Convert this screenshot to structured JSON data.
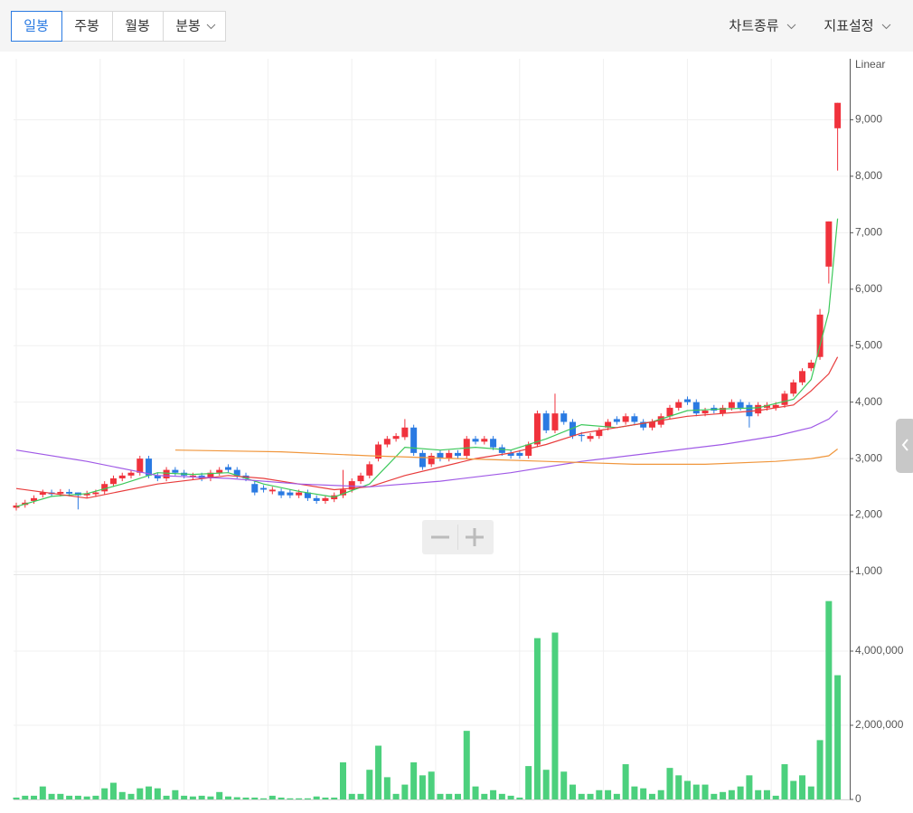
{
  "toolbar": {
    "tabs": [
      "일봉",
      "주봉",
      "월봉",
      "분봉"
    ],
    "menus": [
      "차트종류",
      "지표설정"
    ]
  },
  "chart_data": [
    {
      "type": "candlestick",
      "scale_label": "Linear",
      "up_color": "#f0323c",
      "down_color": "#2a7ae2",
      "open": [
        2130,
        2180,
        2250,
        2360,
        2400,
        2380,
        2410,
        2400,
        2350,
        2370,
        2420,
        2550,
        2650,
        2700,
        2750,
        3000,
        2700,
        2650,
        2800,
        2750,
        2680,
        2700,
        2650,
        2750,
        2850,
        2800,
        2700,
        2550,
        2480,
        2420,
        2420,
        2400,
        2350,
        2400,
        2300,
        2250,
        2280,
        2350,
        2450,
        2600,
        2700,
        3000,
        3250,
        3350,
        3380,
        3550,
        3100,
        2900,
        3100,
        3000,
        3100,
        3050,
        3350,
        3300,
        3350,
        3200,
        3100,
        3100,
        3050,
        3250,
        3800,
        3500,
        3800,
        3650,
        3420,
        3350,
        3400,
        3550,
        3700,
        3650,
        3750,
        3650,
        3550,
        3600,
        3750,
        3900,
        4050,
        4000,
        3800,
        3900,
        3800,
        3900,
        4000,
        3950,
        3800,
        3900,
        3900,
        3950,
        4150,
        4350,
        4600,
        4800,
        6400,
        8850
      ],
      "high": [
        2220,
        2270,
        2350,
        2450,
        2450,
        2460,
        2460,
        2400,
        2430,
        2450,
        2600,
        2700,
        2750,
        2800,
        3050,
        3050,
        2750,
        2850,
        2850,
        2800,
        2750,
        2750,
        2800,
        2850,
        2900,
        2850,
        2750,
        2600,
        2530,
        2500,
        2470,
        2450,
        2450,
        2450,
        2350,
        2350,
        2400,
        2800,
        2650,
        2750,
        2950,
        3300,
        3400,
        3450,
        3700,
        3600,
        3150,
        3100,
        3150,
        3150,
        3150,
        3400,
        3400,
        3400,
        3400,
        3250,
        3150,
        3150,
        3300,
        3850,
        3850,
        4150,
        3850,
        3700,
        3470,
        3450,
        3550,
        3700,
        3750,
        3800,
        3800,
        3700,
        3700,
        3800,
        3950,
        4050,
        4100,
        4050,
        3900,
        3950,
        3950,
        4050,
        4050,
        4000,
        4000,
        4000,
        4000,
        4200,
        4400,
        4600,
        4750,
        5650,
        7200,
        9300
      ],
      "low": [
        2080,
        2130,
        2200,
        2310,
        2320,
        2330,
        2330,
        2100,
        2300,
        2320,
        2370,
        2500,
        2600,
        2650,
        2700,
        2650,
        2600,
        2600,
        2700,
        2650,
        2630,
        2600,
        2600,
        2700,
        2750,
        2650,
        2600,
        2350,
        2400,
        2370,
        2300,
        2300,
        2300,
        2250,
        2200,
        2200,
        2230,
        2300,
        2400,
        2550,
        2650,
        2950,
        3200,
        3300,
        3330,
        3050,
        2800,
        2850,
        2950,
        2950,
        3000,
        3000,
        3250,
        3250,
        3150,
        3050,
        3000,
        3000,
        3000,
        3200,
        3450,
        3450,
        3600,
        3350,
        3300,
        3300,
        3350,
        3500,
        3600,
        3600,
        3600,
        3500,
        3500,
        3550,
        3700,
        3850,
        3950,
        3750,
        3750,
        3800,
        3750,
        3850,
        3850,
        3550,
        3750,
        3850,
        3850,
        3900,
        4100,
        4300,
        4550,
        4750,
        6100,
        8100
      ],
      "close": [
        2170,
        2220,
        2300,
        2400,
        2370,
        2410,
        2380,
        2350,
        2380,
        2400,
        2550,
        2650,
        2700,
        2750,
        3000,
        2700,
        2650,
        2800,
        2750,
        2700,
        2700,
        2650,
        2750,
        2800,
        2800,
        2700,
        2650,
        2400,
        2450,
        2450,
        2350,
        2350,
        2400,
        2300,
        2250,
        2300,
        2350,
        2450,
        2600,
        2700,
        2900,
        3250,
        3350,
        3400,
        3550,
        3100,
        2850,
        3050,
        3000,
        3100,
        3050,
        3350,
        3300,
        3350,
        3200,
        3100,
        3050,
        3050,
        3250,
        3800,
        3500,
        3800,
        3650,
        3400,
        3400,
        3400,
        3500,
        3650,
        3650,
        3750,
        3650,
        3550,
        3650,
        3750,
        3900,
        4000,
        4000,
        3800,
        3850,
        3850,
        3900,
        4000,
        3900,
        3750,
        3950,
        3950,
        3950,
        4150,
        4350,
        4550,
        4700,
        5550,
        7200,
        9300
      ],
      "series": [
        {
          "color": "#3cc85a",
          "x": [
            0,
            4,
            8,
            12,
            16,
            20,
            24,
            28,
            32,
            36,
            40,
            44,
            48,
            52,
            56,
            60,
            64,
            68,
            72,
            76,
            80,
            84,
            88,
            90,
            92,
            93
          ],
          "values": [
            2150,
            2330,
            2380,
            2550,
            2750,
            2720,
            2750,
            2550,
            2420,
            2320,
            2550,
            3200,
            3150,
            3200,
            3150,
            3350,
            3600,
            3550,
            3650,
            3850,
            3880,
            3900,
            4050,
            4400,
            5600,
            7250
          ]
        },
        {
          "color": "#e83c3c",
          "x": [
            0,
            8,
            16,
            24,
            28,
            32,
            36,
            40,
            44,
            48,
            52,
            56,
            60,
            64,
            68,
            72,
            76,
            80,
            84,
            88,
            90,
            92,
            93
          ],
          "values": [
            2470,
            2300,
            2550,
            2700,
            2650,
            2550,
            2450,
            2500,
            2700,
            2850,
            3000,
            3100,
            3250,
            3450,
            3550,
            3650,
            3750,
            3800,
            3850,
            3950,
            4200,
            4500,
            4800
          ]
        },
        {
          "color": "#a05ae6",
          "x": [
            0,
            8,
            16,
            24,
            32,
            40,
            48,
            56,
            64,
            72,
            80,
            86,
            90,
            92,
            93
          ],
          "values": [
            3150,
            2950,
            2700,
            2650,
            2550,
            2500,
            2600,
            2750,
            2950,
            3100,
            3250,
            3400,
            3550,
            3700,
            3850
          ]
        },
        {
          "color": "#f0963c",
          "x": [
            18,
            30,
            40,
            50,
            60,
            70,
            78,
            86,
            90,
            92,
            93
          ],
          "values": [
            3150,
            3120,
            3050,
            3000,
            2950,
            2900,
            2900,
            2950,
            3000,
            3050,
            3170
          ]
        }
      ],
      "ylim": [
        1000,
        10000
      ],
      "yticks": [
        {
          "value": 1000,
          "label": "1,000"
        },
        {
          "value": 2000,
          "label": "2,000"
        },
        {
          "value": 3000,
          "label": "3,000"
        },
        {
          "value": 4000,
          "label": "4,000"
        },
        {
          "value": 5000,
          "label": "5,000"
        },
        {
          "value": 6000,
          "label": "6,000"
        },
        {
          "value": 7000,
          "label": "7,000"
        },
        {
          "value": 8000,
          "label": "8,000"
        },
        {
          "value": 9000,
          "label": "9,000"
        }
      ],
      "grid": true
    },
    {
      "type": "bar",
      "color": "#4cd07d",
      "values": [
        50000,
        100000,
        100000,
        350000,
        150000,
        150000,
        100000,
        100000,
        80000,
        100000,
        300000,
        450000,
        200000,
        150000,
        300000,
        350000,
        300000,
        100000,
        250000,
        100000,
        80000,
        100000,
        80000,
        200000,
        80000,
        60000,
        50000,
        50000,
        30000,
        100000,
        50000,
        30000,
        30000,
        30000,
        80000,
        50000,
        50000,
        1000000,
        150000,
        150000,
        800000,
        1450000,
        600000,
        150000,
        400000,
        1000000,
        650000,
        750000,
        150000,
        150000,
        150000,
        1850000,
        350000,
        150000,
        250000,
        150000,
        100000,
        50000,
        900000,
        4350000,
        800000,
        4500000,
        750000,
        400000,
        150000,
        150000,
        250000,
        250000,
        150000,
        950000,
        350000,
        300000,
        150000,
        250000,
        850000,
        650000,
        500000,
        400000,
        400000,
        150000,
        200000,
        250000,
        350000,
        650000,
        250000,
        250000,
        100000,
        950000,
        500000,
        650000,
        350000,
        1600000,
        5350000,
        3350000
      ],
      "ylim": [
        0,
        6000000
      ],
      "yticks": [
        0,
        {
          "value": 2000000,
          "label": "2,000,000"
        },
        {
          "value": 4000000,
          "label": "4,000,000"
        }
      ],
      "grid": true
    }
  ]
}
